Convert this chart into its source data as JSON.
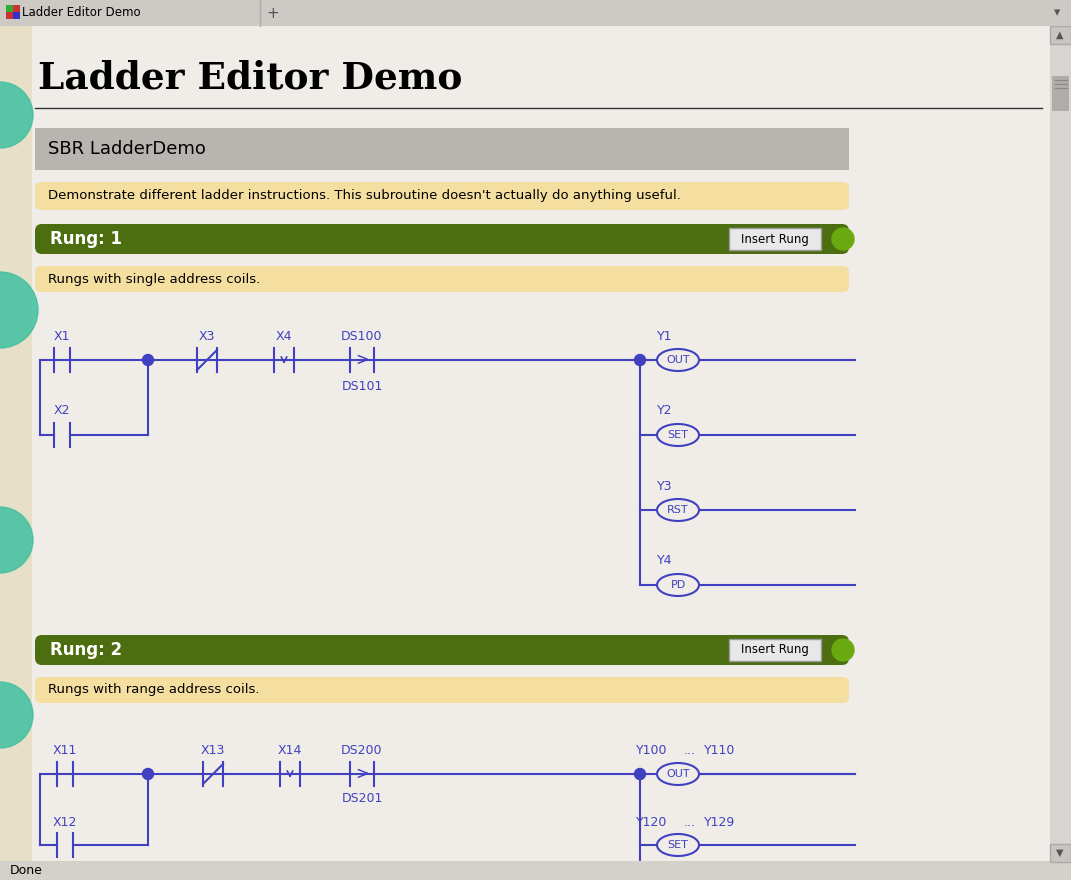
{
  "title": "Ladder Editor Demo",
  "window_title": "Ladder Editor Demo",
  "outer_bg": "#e8e4de",
  "main_bg": "#f0ede8",
  "content_bg": "#f0ede8",
  "blue": "#4040c0",
  "sbr_bg": "#b8b4b0",
  "sbr_text": "SBR LadderDemo",
  "desc_bg": "#f5dfa0",
  "desc_text": "Demonstrate different ladder instructions. This subroutine doesn't actually do anything useful.",
  "rung1_header": "Rung: 1",
  "rung1_desc": "Rungs with single address coils.",
  "rung2_header": "Rung: 2",
  "rung2_desc": "Rungs with range address coils.",
  "green_bg": "#4d6e10",
  "insert_btn_text": "Insert Rung",
  "status_bar": "Done",
  "left_panel_bg": "#e8dfc8",
  "teal_color": "#40c0a0",
  "scrollbar_bg": "#d8d4d0",
  "scrollbar_grip": "#b8b4b0"
}
